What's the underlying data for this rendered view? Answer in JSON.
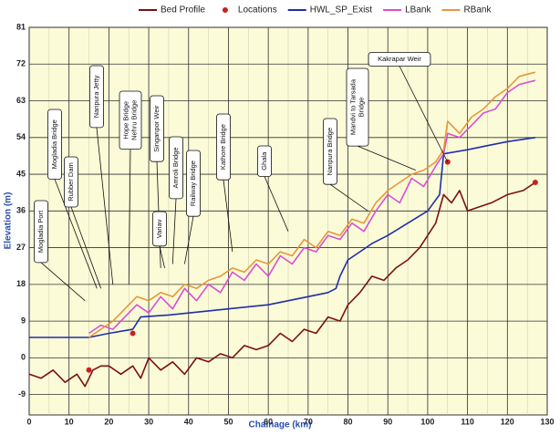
{
  "chart_data": {
    "type": "line",
    "x_label": "Chainage (km)",
    "y_label": "Elevation (m)",
    "xlim": [
      0,
      130
    ],
    "xticks": [
      0,
      10,
      20,
      30,
      40,
      50,
      60,
      70,
      80,
      90,
      100,
      110,
      120,
      130
    ],
    "ylim": [
      -14,
      81
    ],
    "yticks": [
      81,
      72,
      63,
      54,
      45,
      36,
      27,
      18,
      9,
      0,
      -9
    ],
    "grid": true,
    "legend": "top",
    "series": [
      {
        "name": "Bed Profile",
        "color": "#7a1010",
        "style": "line",
        "x": [
          0,
          3,
          6,
          9,
          12,
          14,
          16,
          18,
          20,
          23,
          26,
          28,
          30,
          33,
          36,
          39,
          42,
          45,
          48,
          51,
          54,
          57,
          60,
          63,
          66,
          69,
          72,
          75,
          78,
          80,
          83,
          86,
          89,
          92,
          95,
          98,
          100,
          102,
          104,
          106,
          108,
          110,
          113,
          116,
          120,
          124,
          127
        ],
        "values": [
          -4,
          -5,
          -3,
          -6,
          -4,
          -7,
          -3,
          -2,
          -2,
          -4,
          -2,
          -5,
          0,
          -3,
          -1,
          -4,
          0,
          -1,
          1,
          0,
          3,
          2,
          3,
          6,
          4,
          7,
          6,
          10,
          9,
          13,
          16,
          20,
          19,
          22,
          24,
          27,
          30,
          33,
          40,
          38,
          41,
          36,
          37,
          38,
          40,
          41,
          43
        ]
      },
      {
        "name": "Locations",
        "color": "#cc1f1f",
        "style": "markers",
        "x": [
          15,
          26,
          105,
          127
        ],
        "values": [
          -3,
          6,
          48,
          43
        ]
      },
      {
        "name": "HWL_SP_Exist",
        "color": "#1f2fa8",
        "style": "line",
        "x": [
          0,
          10,
          15,
          20,
          26,
          28,
          35,
          40,
          50,
          60,
          70,
          75,
          77,
          78,
          80,
          83,
          86,
          90,
          95,
          100,
          103,
          104,
          110,
          115,
          120,
          127
        ],
        "values": [
          5,
          5,
          5,
          6,
          7,
          10,
          10.5,
          11,
          12,
          13,
          15,
          16,
          17,
          20,
          24,
          26,
          28,
          30,
          33,
          36,
          40,
          50,
          51,
          52,
          53,
          54
        ]
      },
      {
        "name": "LBank",
        "color": "#d94fd0",
        "style": "line",
        "x": [
          15,
          18,
          21,
          24,
          27,
          30,
          33,
          36,
          39,
          42,
          45,
          48,
          51,
          54,
          57,
          60,
          63,
          66,
          69,
          72,
          75,
          78,
          81,
          84,
          87,
          90,
          93,
          96,
          99,
          102,
          104,
          105,
          108,
          111,
          114,
          117,
          120,
          123,
          127
        ],
        "values": [
          6,
          8,
          7,
          10,
          13,
          11,
          15,
          12,
          17,
          14,
          18,
          16,
          21,
          19,
          23,
          20,
          25,
          23,
          27,
          26,
          30,
          29,
          33,
          31,
          36,
          40,
          38,
          44,
          42,
          47,
          50,
          55,
          54,
          57,
          60,
          61,
          65,
          67,
          68
        ]
      },
      {
        "name": "RBank",
        "color": "#e8963a",
        "style": "line",
        "x": [
          15,
          18,
          21,
          24,
          27,
          30,
          33,
          36,
          39,
          42,
          45,
          48,
          51,
          54,
          57,
          60,
          63,
          66,
          69,
          72,
          75,
          78,
          81,
          84,
          87,
          90,
          93,
          96,
          99,
          102,
          104,
          105,
          108,
          111,
          114,
          117,
          120,
          123,
          127
        ],
        "values": [
          5,
          7,
          9,
          12,
          15,
          14,
          16,
          15,
          18,
          17,
          19,
          20,
          22,
          21,
          24,
          23,
          26,
          25,
          29,
          27,
          31,
          30,
          34,
          33,
          38,
          41,
          43,
          45,
          46,
          48,
          51,
          58,
          55,
          59,
          61,
          64,
          66,
          69,
          70
        ]
      }
    ],
    "annotations": [
      {
        "text": "Mogladia Port",
        "x": 14,
        "y": 14
      },
      {
        "text": "Mogladia Bridge",
        "x": 17,
        "y": 17
      },
      {
        "text": "Rubber Dam",
        "x": 18,
        "y": 17
      },
      {
        "text": "Nanpura Jetty",
        "x": 21,
        "y": 18
      },
      {
        "text": "Hope Bridge\nNehru Bridge",
        "x": 25,
        "y": 18
      },
      {
        "text": "Singanpor Weir",
        "x": 33,
        "y": 22
      },
      {
        "text": "Variav",
        "x": 34,
        "y": 22
      },
      {
        "text": "Amroli Bridge",
        "x": 36,
        "y": 23
      },
      {
        "text": "Railway Bridge",
        "x": 39,
        "y": 23
      },
      {
        "text": "Kathore Bridge",
        "x": 51,
        "y": 26
      },
      {
        "text": "Ghala",
        "x": 65,
        "y": 31
      },
      {
        "text": "Nanpura Bridge",
        "x": 85,
        "y": 36
      },
      {
        "text": "Mandvi to Tarsada\nBridge",
        "x": 97,
        "y": 46
      },
      {
        "text": "Kakrapar Weir",
        "x": 105,
        "y": 48
      }
    ]
  }
}
